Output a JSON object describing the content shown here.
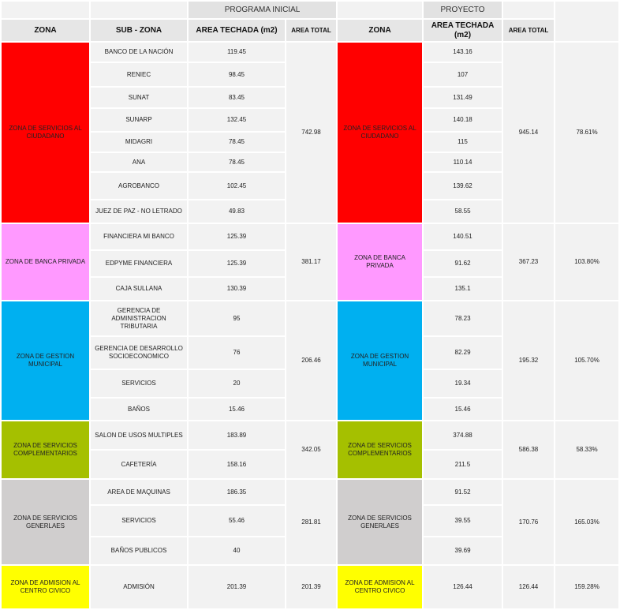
{
  "header": {
    "group_initial": "PROGRAMA INICIAL",
    "group_project": "PROYECTO",
    "col_zona": "ZONA",
    "col_subzona": "SUB - ZONA",
    "col_area_techada": "AREA TECHADA (m2)",
    "col_area_total": "AREA TOTAL",
    "col_zona_project": "ZONA",
    "col_area_techada_project": "AREA TECHADA (m2)",
    "col_area_total_project": "AREA TOTAL"
  },
  "zones": [
    {
      "name": "ZONA DE SERVICIOS AL CIUDADANO",
      "color": "#ff0000",
      "initial_total": "742.98",
      "project_total": "945.14",
      "percent": "78.61%",
      "rows": [
        {
          "sub": "BANCO DE LA NACIÓN",
          "initial": "119.45",
          "project": "143.16"
        },
        {
          "sub": "RENIEC",
          "initial": "98.45",
          "project": "107"
        },
        {
          "sub": "SUNAT",
          "initial": "83.45",
          "project": "131.49"
        },
        {
          "sub": "SUNARP",
          "initial": "132.45",
          "project": "140.18"
        },
        {
          "sub": "MIDAGRI",
          "initial": "78.45",
          "project": "115"
        },
        {
          "sub": "ANA",
          "initial": "78.45",
          "project": "110.14"
        },
        {
          "sub": "AGROBANCO",
          "initial": "102.45",
          "project": "139.62"
        },
        {
          "sub": "JUEZ DE PAZ - NO LETRADO",
          "initial": "49.83",
          "project": "58.55"
        }
      ]
    },
    {
      "name": "ZONA DE BANCA PRIVADA",
      "color": "#ff99ff",
      "initial_total": "381.17",
      "project_total": "367.23",
      "percent": "103.80%",
      "rows": [
        {
          "sub": "FINANCIERA MI BANCO",
          "initial": "125.39",
          "project": "140.51"
        },
        {
          "sub": "EDPYME FINANCIERA",
          "initial": "125.39",
          "project": "91.62"
        },
        {
          "sub": "CAJA SULLANA",
          "initial": "130.39",
          "project": "135.1"
        }
      ]
    },
    {
      "name": "ZONA DE GESTION MUNICIPAL",
      "color": "#00b0f0",
      "initial_total": "206.46",
      "project_total": "195.32",
      "percent": "105.70%",
      "rows": [
        {
          "sub": "GERENCIA DE ADMINISTRACION TRIBUTARIA",
          "initial": "95",
          "project": "78.23"
        },
        {
          "sub": "GERENCIA DE DESARROLLO SOCIOECONOMICO",
          "initial": "76",
          "project": "82.29"
        },
        {
          "sub": "SERVICIOS",
          "initial": "20",
          "project": "19.34"
        },
        {
          "sub": "BAÑOS",
          "initial": "15.46",
          "project": "15.46"
        }
      ]
    },
    {
      "name": "ZONA DE SERVICIOS COMPLEMENTARIOS",
      "color": "#a5c000",
      "initial_total": "342.05",
      "project_total": "586.38",
      "percent": "58.33%",
      "rows": [
        {
          "sub": "SALON DE USOS MULTIPLES",
          "initial": "183.89",
          "project": "374.88"
        },
        {
          "sub": "CAFETERÍA",
          "initial": "158.16",
          "project": "211.5"
        }
      ]
    },
    {
      "name": "ZONA DE SERVICIOS GENERLAES",
      "color": "#d0cece",
      "initial_total": "281.81",
      "project_total": "170.76",
      "percent": "165.03%",
      "rows": [
        {
          "sub": "AREA DE MAQUINAS",
          "initial": "186.35",
          "project": "91.52"
        },
        {
          "sub": "SERVICIOS",
          "initial": "55.46",
          "project": "39.55"
        },
        {
          "sub": "BAÑOS PUBLICOS",
          "initial": "40",
          "project": "39.69"
        }
      ]
    },
    {
      "name": "ZONA DE ADMISION AL CENTRO CIVICO",
      "color": "#ffff00",
      "initial_total": "201.39",
      "project_total": "126.44",
      "percent": "159.28%",
      "rows": [
        {
          "sub": "ADMISIÓN",
          "initial": "201.39",
          "project": "126.44"
        }
      ]
    }
  ]
}
